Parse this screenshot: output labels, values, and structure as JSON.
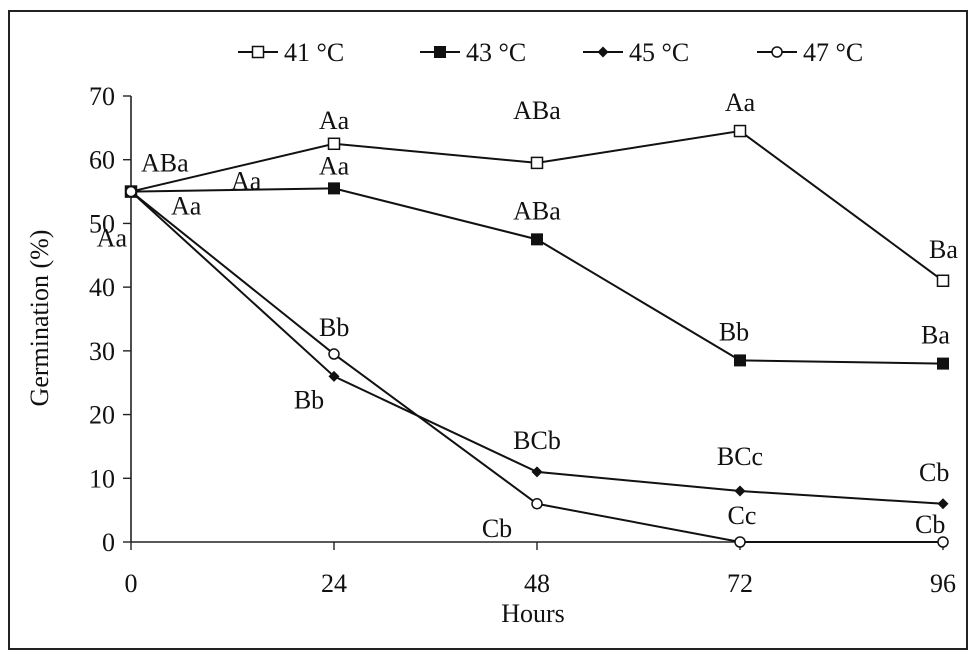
{
  "chart_data": {
    "type": "line",
    "title": "",
    "xlabel": "Hours",
    "ylabel": "Germination (%)",
    "x": [
      0,
      24,
      48,
      72,
      96
    ],
    "x_ticks": [
      "0",
      "24",
      "48",
      "72",
      "96"
    ],
    "ylim": [
      0,
      70
    ],
    "y_ticks": [
      "0",
      "10",
      "20",
      "30",
      "40",
      "50",
      "60",
      "70"
    ],
    "grid": false,
    "legend_position": "top",
    "series": [
      {
        "name": "41 °C",
        "marker": "open-square",
        "values": [
          55,
          62.5,
          59.5,
          64.5,
          41
        ],
        "labels": [
          "ABa",
          "Aa",
          "ABa",
          "Aa",
          "Ba"
        ]
      },
      {
        "name": "43 °C",
        "marker": "filled-square",
        "values": [
          55,
          55.5,
          47.5,
          28.5,
          28
        ],
        "labels": [
          "Aa",
          "Aa",
          "ABa",
          "Bb",
          "Ba"
        ]
      },
      {
        "name": "45 °C",
        "marker": "filled-diamond",
        "values": [
          55,
          26,
          11,
          8,
          6
        ],
        "labels": [
          "Aa",
          "Bb",
          "BCb",
          "BCc",
          "Cb"
        ]
      },
      {
        "name": "47 °C",
        "marker": "open-circle",
        "values": [
          55,
          29.5,
          6,
          0,
          0
        ],
        "labels": [
          "Aa",
          "Bb",
          "Cb",
          "Cc",
          "Cb"
        ]
      }
    ]
  }
}
